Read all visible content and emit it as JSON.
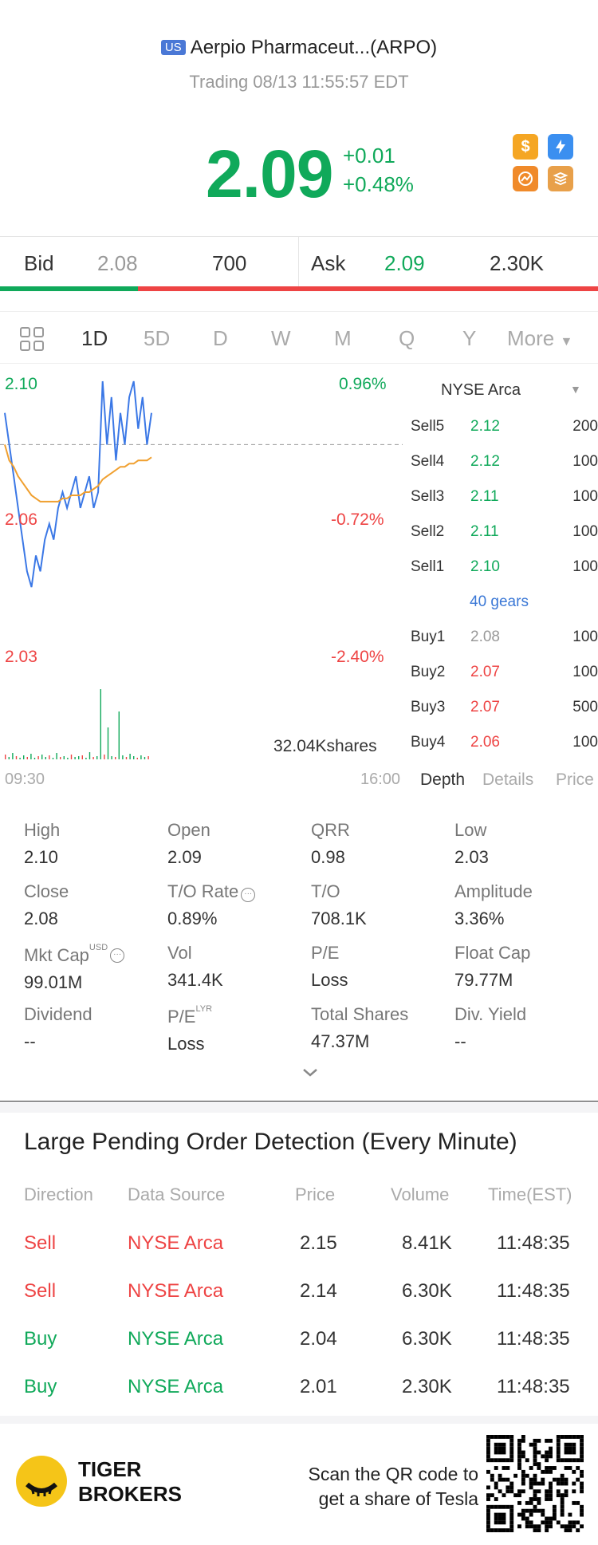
{
  "header": {
    "market_badge": "US",
    "stock_name": "Aerpio Pharmaceut...(ARPO)",
    "status": "Trading 08/13 11:55:57 EDT",
    "price": "2.09",
    "change_abs": "+0.01",
    "change_pct": "+0.48%",
    "quick_icons": [
      "dollar-icon",
      "lightning-icon",
      "share-icon",
      "stack-icon"
    ]
  },
  "bidask": {
    "bid_label": "Bid",
    "bid_price": "2.08",
    "bid_size": "700",
    "ask_label": "Ask",
    "ask_price": "2.09",
    "ask_size": "2.30K",
    "bid_ratio": 0.23
  },
  "period_tabs": [
    "1D",
    "5D",
    "D",
    "W",
    "M",
    "Q",
    "Y",
    "More"
  ],
  "active_tab": "1D",
  "chart": {
    "high_price": "2.10",
    "high_pct": "0.96%",
    "mid_price": "2.06",
    "mid_pct": "-0.72%",
    "low_price": "2.03",
    "low_pct": "-2.40%",
    "volume_label": "32.04Kshares",
    "start_time": "09:30",
    "end_time": "16:00"
  },
  "chart_data": {
    "type": "line",
    "title": "",
    "xlabel": "",
    "ylabel": "",
    "ylim": [
      2.03,
      2.1
    ],
    "prev_close": 2.08,
    "series": [
      {
        "values": [
          2.09,
          2.08,
          2.07,
          2.06,
          2.05,
          2.04,
          2.035,
          2.045,
          2.04,
          2.05,
          2.055,
          2.05,
          2.06,
          2.065,
          2.06,
          2.065,
          2.07,
          2.06,
          2.065,
          2.07,
          2.06,
          2.065,
          2.1,
          2.08,
          2.095,
          2.075,
          2.09,
          2.08,
          2.095,
          2.1,
          2.085,
          2.095,
          2.08,
          2.09
        ]
      },
      {
        "values": [
          2.08,
          2.075,
          2.073,
          2.07,
          2.068,
          2.066,
          2.064,
          2.063,
          2.062,
          2.062,
          2.062,
          2.062,
          2.062,
          2.063,
          2.063,
          2.064,
          2.064,
          2.064,
          2.065,
          2.065,
          2.066,
          2.067,
          2.069,
          2.07,
          2.071,
          2.072,
          2.073,
          2.073,
          2.074,
          2.074,
          2.075,
          2.075,
          2.075,
          2.076
        ]
      }
    ]
  },
  "depth": {
    "exchange": "NYSE Arca",
    "sells": [
      {
        "label": "Sell5",
        "price": "2.12",
        "vol": "200"
      },
      {
        "label": "Sell4",
        "price": "2.12",
        "vol": "100"
      },
      {
        "label": "Sell3",
        "price": "2.11",
        "vol": "100"
      },
      {
        "label": "Sell2",
        "price": "2.11",
        "vol": "100"
      },
      {
        "label": "Sell1",
        "price": "2.10",
        "vol": "100"
      }
    ],
    "gears": "40 gears",
    "buys": [
      {
        "label": "Buy1",
        "price": "2.08",
        "vol": "100"
      },
      {
        "label": "Buy2",
        "price": "2.07",
        "vol": "100"
      },
      {
        "label": "Buy3",
        "price": "2.07",
        "vol": "500"
      },
      {
        "label": "Buy4",
        "price": "2.06",
        "vol": "100"
      }
    ],
    "tabs": [
      "Depth",
      "Details",
      "Price"
    ]
  },
  "stats": [
    {
      "k": "High",
      "v": "2.10"
    },
    {
      "k": "Open",
      "v": "2.09"
    },
    {
      "k": "QRR",
      "v": "0.98"
    },
    {
      "k": "Low",
      "v": "2.03"
    },
    {
      "k": "Close",
      "v": "2.08"
    },
    {
      "k": "T/O Rate",
      "v": "0.89%"
    },
    {
      "k": "T/O",
      "v": "708.1K"
    },
    {
      "k": "Amplitude",
      "v": "3.36%"
    },
    {
      "k": "Mkt Cap",
      "v": "99.01M",
      "sup": "USD"
    },
    {
      "k": "Vol",
      "v": "341.4K"
    },
    {
      "k": "P/E",
      "v": "Loss"
    },
    {
      "k": "Float Cap",
      "v": "79.77M"
    },
    {
      "k": "Dividend",
      "v": "--"
    },
    {
      "k": "P/E",
      "v": "Loss",
      "sup": "LYR"
    },
    {
      "k": "Total Shares",
      "v": "47.37M"
    },
    {
      "k": "Div. Yield",
      "v": "--"
    }
  ],
  "orders": {
    "title": "Large Pending Order Detection (Every Minute)",
    "headers": [
      "Direction",
      "Data Source",
      "Price",
      "Volume",
      "Time(EST)"
    ],
    "rows": [
      {
        "dir": "Sell",
        "src": "NYSE Arca",
        "price": "2.15",
        "vol": "8.41K",
        "time": "11:48:35"
      },
      {
        "dir": "Sell",
        "src": "NYSE Arca",
        "price": "2.14",
        "vol": "6.30K",
        "time": "11:48:35"
      },
      {
        "dir": "Buy",
        "src": "NYSE Arca",
        "price": "2.04",
        "vol": "6.30K",
        "time": "11:48:35"
      },
      {
        "dir": "Buy",
        "src": "NYSE Arca",
        "price": "2.01",
        "vol": "2.30K",
        "time": "11:48:35"
      }
    ]
  },
  "footer": {
    "brand_line1": "TIGER",
    "brand_line2": "BROKERS",
    "scan_line1": "Scan the QR code to",
    "scan_line2": "get a share of Tesla"
  },
  "colors": {
    "up": "#10a95a",
    "down": "#ee4444",
    "accent": "#4a78d6",
    "orange": "#f0a030"
  }
}
